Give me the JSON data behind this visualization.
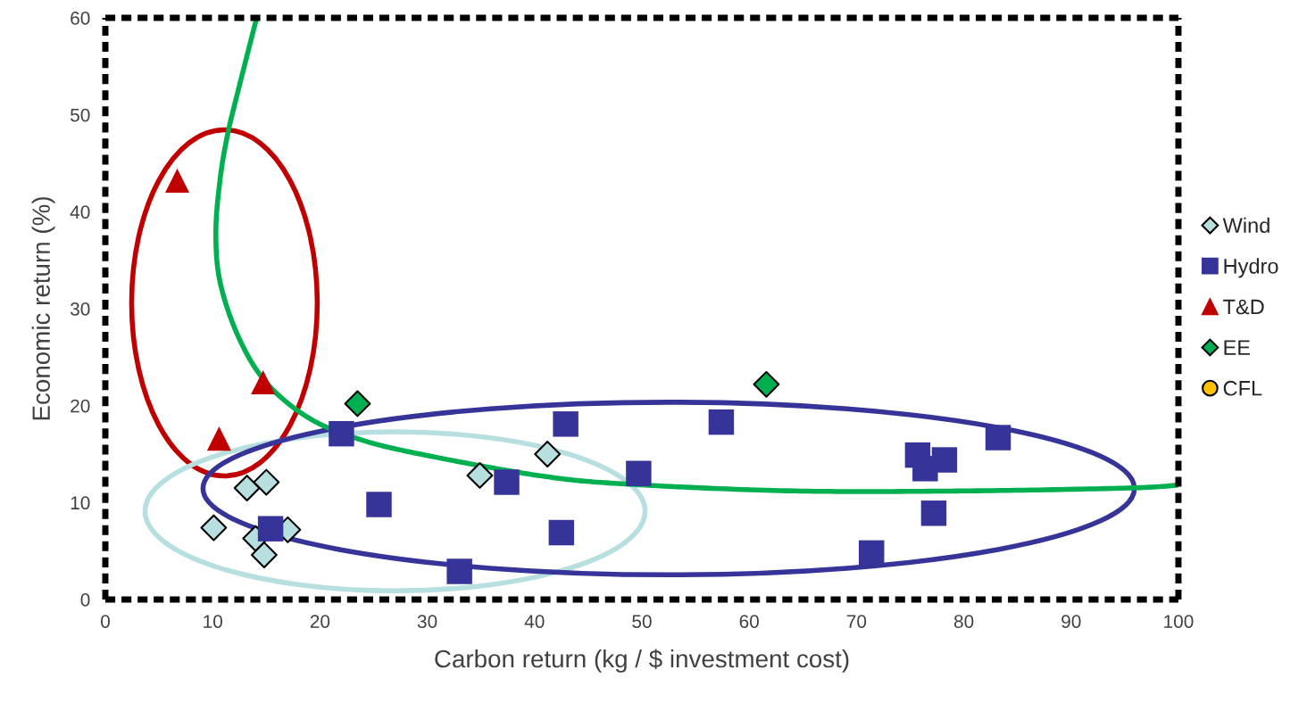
{
  "chart_data": {
    "type": "scatter",
    "xlabel": "Carbon return (kg / $ investment cost)",
    "ylabel": "Economic return (%)",
    "xlim": [
      0,
      100
    ],
    "xticks": [
      0,
      10,
      20,
      30,
      40,
      50,
      60,
      70,
      80,
      90,
      100
    ],
    "ylim": [
      0,
      60
    ],
    "yticks": [
      0,
      10,
      20,
      30,
      40,
      50,
      60
    ],
    "grid": false,
    "legend": "right",
    "series": [
      {
        "name": "Wind",
        "color": "#b7dfe0",
        "marker": "diamond",
        "x": [
          10.1,
          13.2,
          15.0,
          14.0,
          14.8,
          17.0,
          34.9,
          41.2
        ],
        "values": [
          7.4,
          11.5,
          12.1,
          6.3,
          4.6,
          7.2,
          12.8,
          15.0
        ]
      },
      {
        "name": "Hydro",
        "color": "#363399",
        "marker": "square",
        "x": [
          22.0,
          15.4,
          25.5,
          33.0,
          37.4,
          42.9,
          42.5,
          49.7,
          57.4,
          71.4,
          75.7,
          76.4,
          78.2,
          77.2,
          83.2
        ],
        "values": [
          17.1,
          7.3,
          9.8,
          2.9,
          12.1,
          18.1,
          6.9,
          13.0,
          18.3,
          4.8,
          14.9,
          13.5,
          14.4,
          8.9,
          16.7
        ]
      },
      {
        "name": "T&D",
        "color": "#c00000",
        "marker": "triangle",
        "x": [
          6.7,
          14.7,
          10.6
        ],
        "values": [
          43.2,
          22.4,
          16.6
        ]
      },
      {
        "name": "EE",
        "color": "#00b050",
        "marker": "diamond",
        "x": [
          23.5,
          61.6
        ],
        "values": [
          20.2,
          22.2
        ]
      },
      {
        "name": "CFL",
        "color": "#ffc000",
        "marker": "circle"
      },
      {
        "type": "line",
        "color": "#00b050",
        "marker": "none",
        "x": [
          14.1,
          12.4,
          11.4,
          10.7,
          10.3,
          10.7,
          12.4,
          14.9,
          18.7,
          23.2,
          28.9,
          40.3,
          48.7,
          64.2,
          80.0,
          95.3,
          100.0
        ],
        "values": [
          60.0,
          52.6,
          48.0,
          43.4,
          37.9,
          32.7,
          27.1,
          22.5,
          18.9,
          16.7,
          15.1,
          12.8,
          11.9,
          11.2,
          11.2,
          11.5,
          11.8
        ]
      }
    ]
  }
}
